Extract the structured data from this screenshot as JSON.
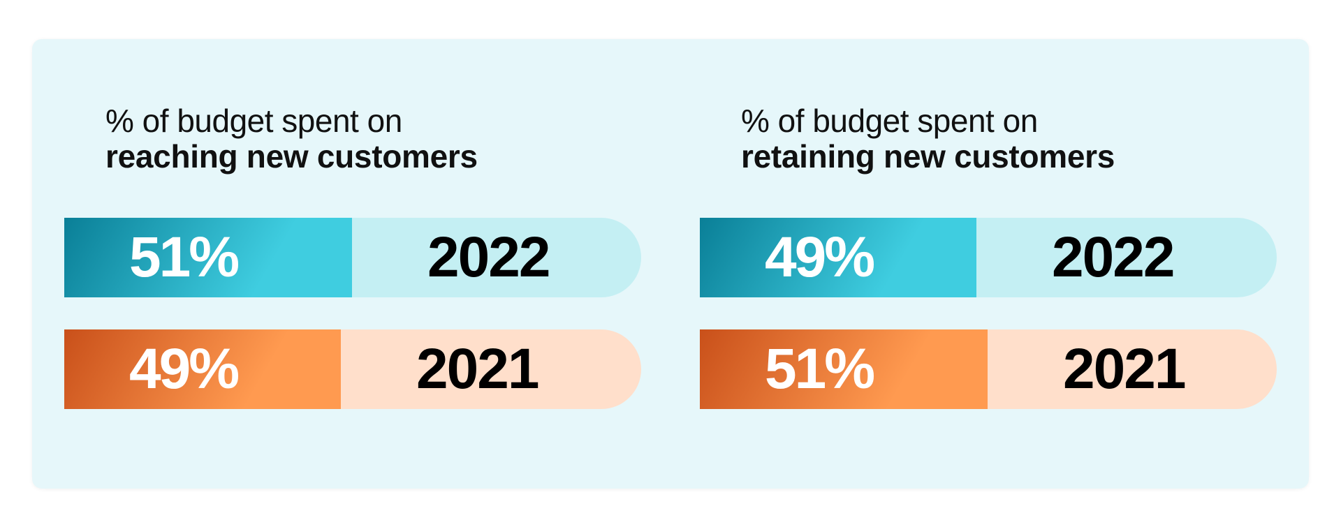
{
  "colors": {
    "background_card": "#e6f7fa",
    "teal_track": "#c4eff3",
    "teal_start": "#0a7f97",
    "teal_end": "#3fcde0",
    "orange_track": "#ffdfcb",
    "orange_start": "#c9501a",
    "orange_end": "#ff9a50"
  },
  "chart_data": [
    {
      "type": "bar",
      "orientation": "horizontal",
      "title_line1": "% of budget spent on",
      "title_line2": "reaching new customers",
      "ylim": [
        0,
        100
      ],
      "bars": [
        {
          "year": "2022",
          "value": 51,
          "label": "51%",
          "color": "teal"
        },
        {
          "year": "2021",
          "value": 49,
          "label": "49%",
          "color": "orange"
        }
      ]
    },
    {
      "type": "bar",
      "orientation": "horizontal",
      "title_line1": "% of budget spent on",
      "title_line2": "retaining new customers",
      "ylim": [
        0,
        100
      ],
      "bars": [
        {
          "year": "2022",
          "value": 49,
          "label": "49%",
          "color": "teal"
        },
        {
          "year": "2021",
          "value": 51,
          "label": "51%",
          "color": "orange"
        }
      ]
    }
  ]
}
